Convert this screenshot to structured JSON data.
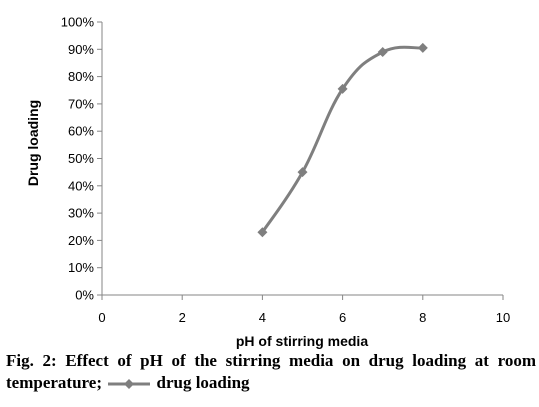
{
  "chart_data": {
    "type": "line",
    "title": "",
    "xlabel": "pH of stirring media",
    "ylabel": "Drug loading",
    "xlim": [
      0,
      10
    ],
    "ylim": [
      0,
      100
    ],
    "x_ticks": [
      0,
      2,
      4,
      6,
      8,
      10
    ],
    "y_ticks": [
      0,
      10,
      20,
      30,
      40,
      50,
      60,
      70,
      80,
      90,
      100
    ],
    "y_unit": "%",
    "grid": false,
    "legend": "in caption",
    "series": [
      {
        "name": "drug loading",
        "color": "#7f7f7f",
        "marker": "diamond",
        "x": [
          4,
          5,
          6,
          7,
          8
        ],
        "y": [
          23,
          45,
          75.5,
          89,
          90.5
        ]
      }
    ]
  },
  "caption": {
    "text": "Fig. 2: Effect of pH of the stirring media on drug loading at room temperature;",
    "legend_label": "drug loading"
  }
}
